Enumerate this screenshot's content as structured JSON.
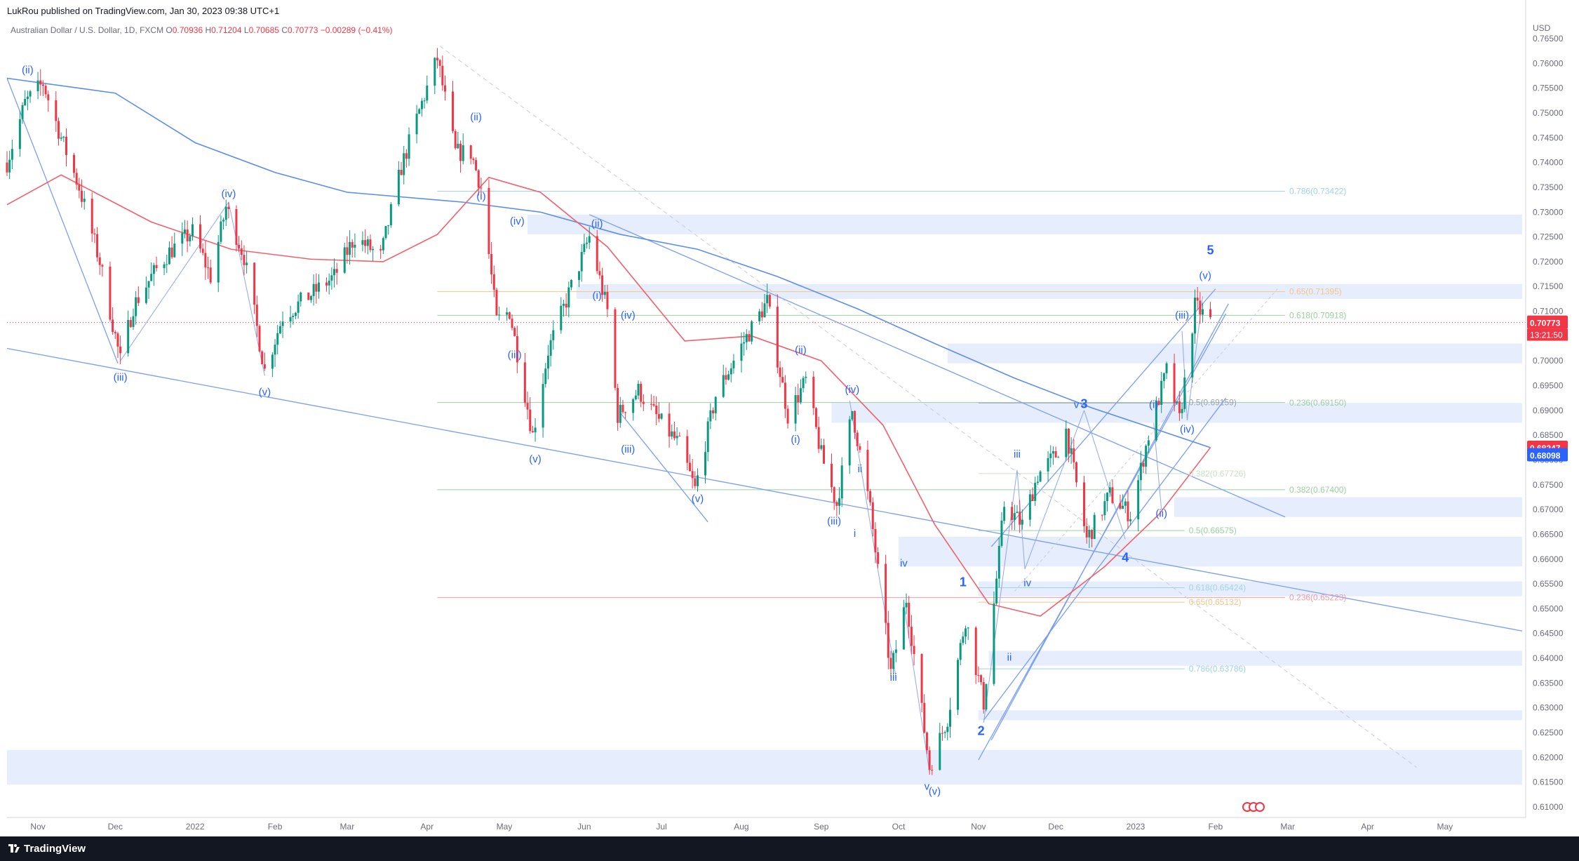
{
  "header": {
    "published": "LukRou published on TradingView.com, Jan 30, 2023 09:38 UTC+1",
    "symbol": "Australian Dollar / U.S. Dollar, 1D, FXCM",
    "o_label": "O",
    "o_value": "0.70936",
    "h_label": "H",
    "h_value": "0.71204",
    "l_label": "L",
    "l_value": "0.70685",
    "c_label": "C",
    "c_value": "0.70773",
    "change": "−0.00289 (−0.41%)"
  },
  "footer": {
    "brand": "TradingView"
  },
  "colors": {
    "up": "#089981",
    "down": "#f23645",
    "ma_blue": "#5b8def",
    "ma_red": "#f0616b",
    "wave": "#2962ff",
    "zone": "#dbe5fb",
    "price_tag": "#f23645",
    "blue_tag": "#2962ff"
  },
  "chart_data": {
    "type": "candlestick",
    "title": "",
    "currency": "USD",
    "x_ticks": [
      "Nov",
      "Dec",
      "2022",
      "Feb",
      "Mar",
      "Apr",
      "May",
      "Jun",
      "Jul",
      "Aug",
      "Sep",
      "Oct",
      "Nov",
      "Dec",
      "2023",
      "Feb",
      "Mar",
      "Apr",
      "May"
    ],
    "y_ticks": [
      "0.76500",
      "0.76000",
      "0.75500",
      "0.75000",
      "0.74500",
      "0.74000",
      "0.73500",
      "0.73000",
      "0.72500",
      "0.72000",
      "0.71500",
      "0.71000",
      "0.70500",
      "0.70000",
      "0.69500",
      "0.69000",
      "0.68500",
      "0.68000",
      "0.67500",
      "0.67000",
      "0.66500",
      "0.66000",
      "0.65500",
      "0.65000",
      "0.64500",
      "0.64000",
      "0.63500",
      "0.63000",
      "0.62500",
      "0.62000",
      "0.61500",
      "0.61000"
    ],
    "ylim": [
      0.608,
      0.7675
    ],
    "current_price": "0.70773",
    "countdown": "13:21:50",
    "ma_tags": [
      "0.68247",
      "0.68098"
    ],
    "price_path": [
      [
        "2021-10-20",
        0.74
      ],
      [
        "2021-10-27",
        0.752
      ],
      [
        "2021-11-03",
        0.756
      ],
      [
        "2021-11-10",
        0.745
      ],
      [
        "2021-11-17",
        0.735
      ],
      [
        "2021-11-25",
        0.72
      ],
      [
        "2021-12-03",
        0.7
      ],
      [
        "2021-12-08",
        0.711
      ],
      [
        "2021-12-15",
        0.717
      ],
      [
        "2021-12-22",
        0.722
      ],
      [
        "2021-12-31",
        0.726
      ],
      [
        "2022-01-07",
        0.717
      ],
      [
        "2022-01-13",
        0.731
      ],
      [
        "2022-01-20",
        0.721
      ],
      [
        "2022-01-28",
        0.698
      ],
      [
        "2022-02-04",
        0.709
      ],
      [
        "2022-02-14",
        0.713
      ],
      [
        "2022-02-24",
        0.717
      ],
      [
        "2022-03-04",
        0.725
      ],
      [
        "2022-03-14",
        0.721
      ],
      [
        "2022-03-22",
        0.739
      ],
      [
        "2022-03-30",
        0.752
      ],
      [
        "2022-04-05",
        0.761
      ],
      [
        "2022-04-12",
        0.742
      ],
      [
        "2022-04-18",
        0.742
      ],
      [
        "2022-04-22",
        0.735
      ],
      [
        "2022-04-28",
        0.708
      ],
      [
        "2022-05-03",
        0.71
      ],
      [
        "2022-05-12",
        0.685
      ],
      [
        "2022-05-18",
        0.702
      ],
      [
        "2022-05-27",
        0.715
      ],
      [
        "2022-06-03",
        0.725
      ],
      [
        "2022-06-10",
        0.71
      ],
      [
        "2022-06-14",
        0.689
      ],
      [
        "2022-06-22",
        0.694
      ],
      [
        "2022-06-30",
        0.688
      ],
      [
        "2022-07-08",
        0.683
      ],
      [
        "2022-07-14",
        0.674
      ],
      [
        "2022-07-22",
        0.693
      ],
      [
        "2022-08-01",
        0.703
      ],
      [
        "2022-08-11",
        0.712
      ],
      [
        "2022-08-19",
        0.689
      ],
      [
        "2022-08-26",
        0.696
      ],
      [
        "2022-09-01",
        0.681
      ],
      [
        "2022-09-07",
        0.671
      ],
      [
        "2022-09-13",
        0.69
      ],
      [
        "2022-09-20",
        0.67
      ],
      [
        "2022-09-28",
        0.637
      ],
      [
        "2022-10-04",
        0.652
      ],
      [
        "2022-10-13",
        0.618
      ],
      [
        "2022-10-20",
        0.628
      ],
      [
        "2022-10-27",
        0.648
      ],
      [
        "2022-11-03",
        0.631
      ],
      [
        "2022-11-11",
        0.671
      ],
      [
        "2022-11-18",
        0.667
      ],
      [
        "2022-11-24",
        0.677
      ],
      [
        "2022-12-01",
        0.681
      ],
      [
        "2022-12-05",
        0.686
      ],
      [
        "2022-12-13",
        0.664
      ],
      [
        "2022-12-22",
        0.673
      ],
      [
        "2022-12-30",
        0.669
      ],
      [
        "2023-01-06",
        0.685
      ],
      [
        "2023-01-13",
        0.698
      ],
      [
        "2023-01-18",
        0.688
      ],
      [
        "2023-01-24",
        0.711
      ],
      [
        "2023-01-30",
        0.708
      ]
    ],
    "fib_labels": [
      {
        "text": "0.786(0.73422)",
        "y": 0.73422
      },
      {
        "text": "0.65(0.71395)",
        "y": 0.71395
      },
      {
        "text": "0.618(0.70918)",
        "y": 0.70918
      },
      {
        "text": "0.236(0.69150)",
        "y": 0.6915
      },
      {
        "text": "0.5(0.69159)",
        "y": 0.69159
      },
      {
        "text": "0.382(0.67726)",
        "y": 0.67726
      },
      {
        "text": "0.382(0.67400)",
        "y": 0.674
      },
      {
        "text": "0.5(0.66575)",
        "y": 0.66575
      },
      {
        "text": "0.618(0.65424)",
        "y": 0.65424
      },
      {
        "text": "0.236(0.65223)",
        "y": 0.65223
      },
      {
        "text": "0.65(0.65132)",
        "y": 0.65132
      },
      {
        "text": "0.786(0.63786)",
        "y": 0.63786
      }
    ],
    "wave_labels": [
      {
        "text": "(ii)",
        "date": "2021-10-28",
        "y": 0.758
      },
      {
        "text": "(iii)",
        "date": "2021-12-03",
        "y": 0.696
      },
      {
        "text": "(iv)",
        "date": "2022-01-14",
        "y": 0.733
      },
      {
        "text": "(v)",
        "date": "2022-01-28",
        "y": 0.693
      },
      {
        "text": "(ii)",
        "date": "2022-04-20",
        "y": 0.7485
      },
      {
        "text": "(i)",
        "date": "2022-04-22",
        "y": 0.7325
      },
      {
        "text": "(iv)",
        "date": "2022-05-06",
        "y": 0.7275
      },
      {
        "text": "(iii)",
        "date": "2022-05-05",
        "y": 0.7005
      },
      {
        "text": "(v)",
        "date": "2022-05-13",
        "y": 0.6795
      },
      {
        "text": "(ii)",
        "date": "2022-06-06",
        "y": 0.727
      },
      {
        "text": "(i)",
        "date": "2022-06-06",
        "y": 0.7125
      },
      {
        "text": "(iv)",
        "date": "2022-06-18",
        "y": 0.7085
      },
      {
        "text": "(iii)",
        "date": "2022-06-18",
        "y": 0.6815
      },
      {
        "text": "(v)",
        "date": "2022-07-15",
        "y": 0.6715
      },
      {
        "text": "(ii)",
        "date": "2022-08-24",
        "y": 0.7015
      },
      {
        "text": "(iv)",
        "date": "2022-09-13",
        "y": 0.6935
      },
      {
        "text": "(i)",
        "date": "2022-08-22",
        "y": 0.6835
      },
      {
        "text": "(iii)",
        "date": "2022-09-06",
        "y": 0.667
      },
      {
        "text": "ii",
        "date": "2022-09-16",
        "y": 0.6775
      },
      {
        "text": "i",
        "date": "2022-09-14",
        "y": 0.6645
      },
      {
        "text": "iv",
        "date": "2022-10-03",
        "y": 0.6585
      },
      {
        "text": "iii",
        "date": "2022-09-29",
        "y": 0.6355
      },
      {
        "text": "v",
        "date": "2022-10-12",
        "y": 0.6135
      },
      {
        "text": "(v)",
        "date": "2022-10-15",
        "y": 0.6125
      },
      {
        "text": "1",
        "date": "2022-10-26",
        "y": 0.6545
      },
      {
        "text": "2",
        "date": "2022-11-02",
        "y": 0.6245
      },
      {
        "text": "i",
        "date": "2022-11-09",
        "y": 0.6575
      },
      {
        "text": "ii",
        "date": "2022-11-13",
        "y": 0.6395
      },
      {
        "text": "iii",
        "date": "2022-11-16",
        "y": 0.6805
      },
      {
        "text": "iv",
        "date": "2022-11-20",
        "y": 0.6545
      },
      {
        "text": "v",
        "date": "2022-12-09",
        "y": 0.6905
      },
      {
        "text": "3",
        "date": "2022-12-12",
        "y": 0.6905
      },
      {
        "text": "4",
        "date": "2022-12-28",
        "y": 0.6595
      },
      {
        "text": "(i)",
        "date": "2023-01-08",
        "y": 0.6905
      },
      {
        "text": "(ii)",
        "date": "2023-01-11",
        "y": 0.6685
      },
      {
        "text": "(iii)",
        "date": "2023-01-19",
        "y": 0.7085
      },
      {
        "text": "(iv)",
        "date": "2023-01-21",
        "y": 0.6855
      },
      {
        "text": "(v)",
        "date": "2023-01-28",
        "y": 0.7165
      },
      {
        "text": "5",
        "date": "2023-01-30",
        "y": 0.7215
      }
    ]
  }
}
